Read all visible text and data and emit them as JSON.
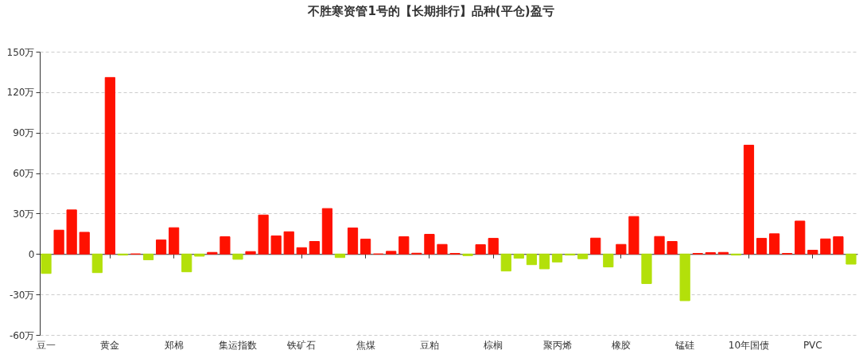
{
  "chart_data": {
    "type": "bar",
    "title": "不胜寒资管1号的【长期排行】品种(平仓)盈亏",
    "categories": [
      "豆一",
      null,
      null,
      null,
      null,
      "黄金",
      null,
      null,
      null,
      null,
      "郑棉",
      null,
      null,
      null,
      null,
      "集运指数",
      null,
      null,
      null,
      null,
      "铁矿石",
      null,
      null,
      null,
      null,
      "焦煤",
      null,
      null,
      null,
      null,
      "豆粕",
      null,
      null,
      null,
      null,
      "棕榈",
      null,
      null,
      null,
      null,
      "聚丙烯",
      null,
      null,
      null,
      null,
      "橡胶",
      null,
      null,
      null,
      null,
      "锰硅",
      null,
      null,
      null,
      null,
      "10年国债",
      null,
      null,
      null,
      null,
      "PVC",
      null,
      null,
      null
    ],
    "values": [
      -14.4,
      17.7,
      32.7,
      16.1,
      -13.8,
      130.9,
      -0.8,
      0,
      -4.3,
      10.4,
      19.5,
      -13.2,
      -1.6,
      1.2,
      12.8,
      -3.9,
      1.8,
      28.9,
      13.4,
      16.5,
      4.7,
      9.3,
      33.7,
      -2.6,
      19.3,
      11.0,
      0,
      2.0,
      12.8,
      0.6,
      14.6,
      7.1,
      0.4,
      -1.2,
      6.9,
      11.6,
      -12.6,
      -3.1,
      -7.9,
      -11.0,
      -5.9,
      -0.8,
      -3.5,
      11.8,
      -9.6,
      7.1,
      27.8,
      -21.9,
      13.0,
      9.3,
      -34.6,
      0.4,
      1.0,
      1.2,
      -0.8,
      80.7,
      11.6,
      15.0,
      0.4,
      24.4,
      2.8,
      11.2,
      12.8,
      -7.5
    ],
    "colors": [
      "#b3e00a",
      "#ff1100",
      "#ff1100",
      "#ff1100",
      "#b3e00a",
      "#ff1100",
      "#b3e00a",
      "#ff1100",
      "#b3e00a",
      "#ff1100",
      "#ff1100",
      "#b3e00a",
      "#b3e00a",
      "#ff1100",
      "#ff1100",
      "#b3e00a",
      "#ff1100",
      "#ff1100",
      "#ff1100",
      "#ff1100",
      "#ff1100",
      "#ff1100",
      "#ff1100",
      "#b3e00a",
      "#ff1100",
      "#ff1100",
      "#ff1100",
      "#ff1100",
      "#ff1100",
      "#ff1100",
      "#ff1100",
      "#ff1100",
      "#ff1100",
      "#b3e00a",
      "#ff1100",
      "#ff1100",
      "#b3e00a",
      "#b3e00a",
      "#b3e00a",
      "#b3e00a",
      "#b3e00a",
      "#b3e00a",
      "#b3e00a",
      "#ff1100",
      "#b3e00a",
      "#ff1100",
      "#ff1100",
      "#b3e00a",
      "#ff1100",
      "#ff1100",
      "#b3e00a",
      "#ff1100",
      "#ff1100",
      "#ff1100",
      "#b3e00a",
      "#ff1100",
      "#ff1100",
      "#ff1100",
      "#ff1100",
      "#ff1100",
      "#ff1100",
      "#ff1100",
      "#ff1100",
      "#b3e00a"
    ],
    "ylim": [
      -60,
      150
    ],
    "yticks": [
      {
        "value": -60,
        "label": "-60万"
      },
      {
        "value": -30,
        "label": "-30万"
      },
      0,
      {
        "value": 30,
        "label": "30万"
      },
      {
        "value": 60,
        "label": "60万"
      },
      {
        "value": 90,
        "label": "90万"
      },
      {
        "value": 120,
        "label": "120万"
      },
      {
        "value": 150,
        "label": "150万"
      }
    ],
    "grid": "y"
  }
}
